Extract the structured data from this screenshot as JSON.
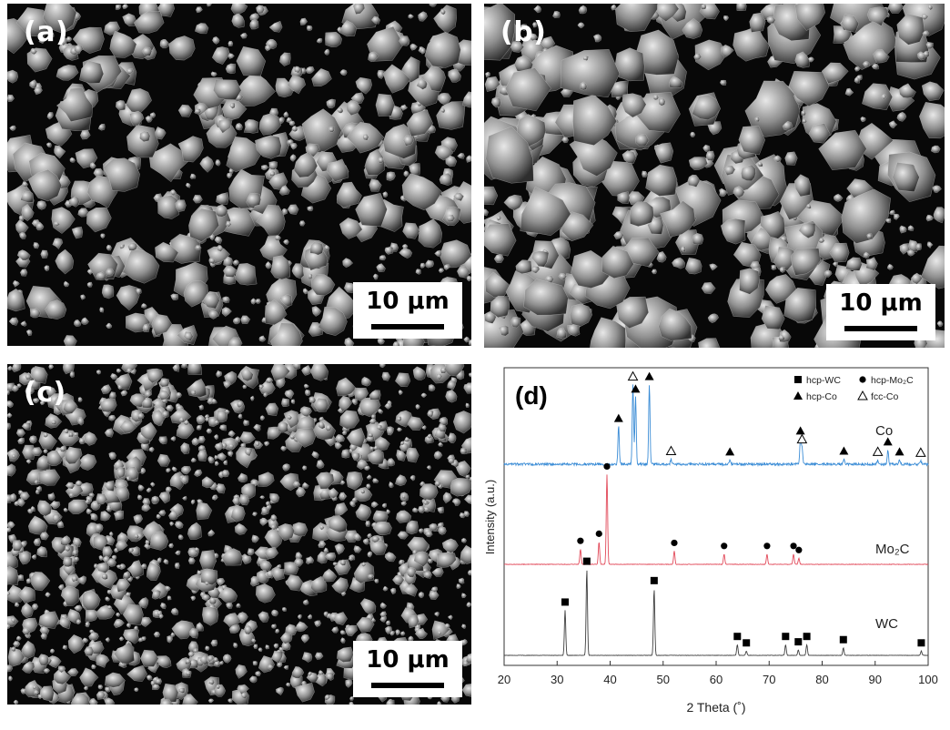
{
  "panels": {
    "a": {
      "label": "(a)",
      "scale_bar": "10 μm"
    },
    "b": {
      "label": "(b)",
      "scale_bar": "10 μm"
    },
    "c": {
      "label": "(c)",
      "scale_bar": "10 μm"
    },
    "d": {
      "label": "(d)"
    }
  },
  "chart_data": {
    "type": "line",
    "xlabel": "2 Theta (˚)",
    "ylabel": "Intensity (a.u.)",
    "xlim": [
      20,
      100
    ],
    "xticks": [
      20,
      30,
      40,
      50,
      60,
      70,
      80,
      90,
      100
    ],
    "legend": {
      "placement": "top-right",
      "entries": [
        {
          "symbol": "filled-square",
          "label": "hcp-WC"
        },
        {
          "symbol": "filled-circle",
          "label": "hcp-Mo₂C"
        },
        {
          "symbol": "filled-triangle",
          "label": "hcp-Co"
        },
        {
          "symbol": "open-triangle",
          "label": "fcc-Co"
        }
      ]
    },
    "series": [
      {
        "name": "Co",
        "color": "#3c8dd6",
        "peaks": [
          {
            "x": 41.6,
            "h": 0.45,
            "phase": "hcp-Co"
          },
          {
            "x": 44.3,
            "h": 0.95,
            "phase": "fcc-Co"
          },
          {
            "x": 44.8,
            "h": 0.8,
            "phase": "hcp-Co"
          },
          {
            "x": 47.4,
            "h": 0.95,
            "phase": "hcp-Co"
          },
          {
            "x": 51.5,
            "h": 0.06,
            "phase": "fcc-Co"
          },
          {
            "x": 62.6,
            "h": 0.05,
            "phase": "hcp-Co"
          },
          {
            "x": 75.9,
            "h": 0.3,
            "phase": "hcp-Co"
          },
          {
            "x": 76.2,
            "h": 0.2,
            "phase": "fcc-Co"
          },
          {
            "x": 84.1,
            "h": 0.06,
            "phase": "hcp-Co"
          },
          {
            "x": 90.5,
            "h": 0.05,
            "phase": "fcc-Co"
          },
          {
            "x": 92.4,
            "h": 0.17,
            "phase": "hcp-Co"
          },
          {
            "x": 94.6,
            "h": 0.05,
            "phase": "hcp-Co"
          },
          {
            "x": 98.6,
            "h": 0.04,
            "phase": "fcc-Co"
          }
        ]
      },
      {
        "name": "Mo₂C",
        "color": "#e24a5a",
        "peaks": [
          {
            "x": 34.4,
            "h": 0.15,
            "phase": "hcp-Mo2C"
          },
          {
            "x": 37.9,
            "h": 0.22,
            "phase": "hcp-Mo2C"
          },
          {
            "x": 39.4,
            "h": 0.88,
            "phase": "hcp-Mo2C"
          },
          {
            "x": 52.1,
            "h": 0.13,
            "phase": "hcp-Mo2C"
          },
          {
            "x": 61.5,
            "h": 0.1,
            "phase": "hcp-Mo2C"
          },
          {
            "x": 69.6,
            "h": 0.1,
            "phase": "hcp-Mo2C"
          },
          {
            "x": 74.6,
            "h": 0.1,
            "phase": "hcp-Mo2C"
          },
          {
            "x": 75.6,
            "h": 0.06,
            "phase": "hcp-Mo2C"
          }
        ]
      },
      {
        "name": "WC",
        "color": "#404040",
        "peaks": [
          {
            "x": 31.5,
            "h": 0.42,
            "phase": "hcp-WC"
          },
          {
            "x": 35.6,
            "h": 0.8,
            "phase": "hcp-WC"
          },
          {
            "x": 48.3,
            "h": 0.62,
            "phase": "hcp-WC"
          },
          {
            "x": 64.0,
            "h": 0.1,
            "phase": "hcp-WC"
          },
          {
            "x": 65.7,
            "h": 0.04,
            "phase": "hcp-WC"
          },
          {
            "x": 73.1,
            "h": 0.1,
            "phase": "hcp-WC"
          },
          {
            "x": 75.5,
            "h": 0.05,
            "phase": "hcp-WC"
          },
          {
            "x": 77.1,
            "h": 0.1,
            "phase": "hcp-WC"
          },
          {
            "x": 84.0,
            "h": 0.07,
            "phase": "hcp-WC"
          },
          {
            "x": 98.7,
            "h": 0.04,
            "phase": "hcp-WC"
          }
        ]
      }
    ]
  }
}
